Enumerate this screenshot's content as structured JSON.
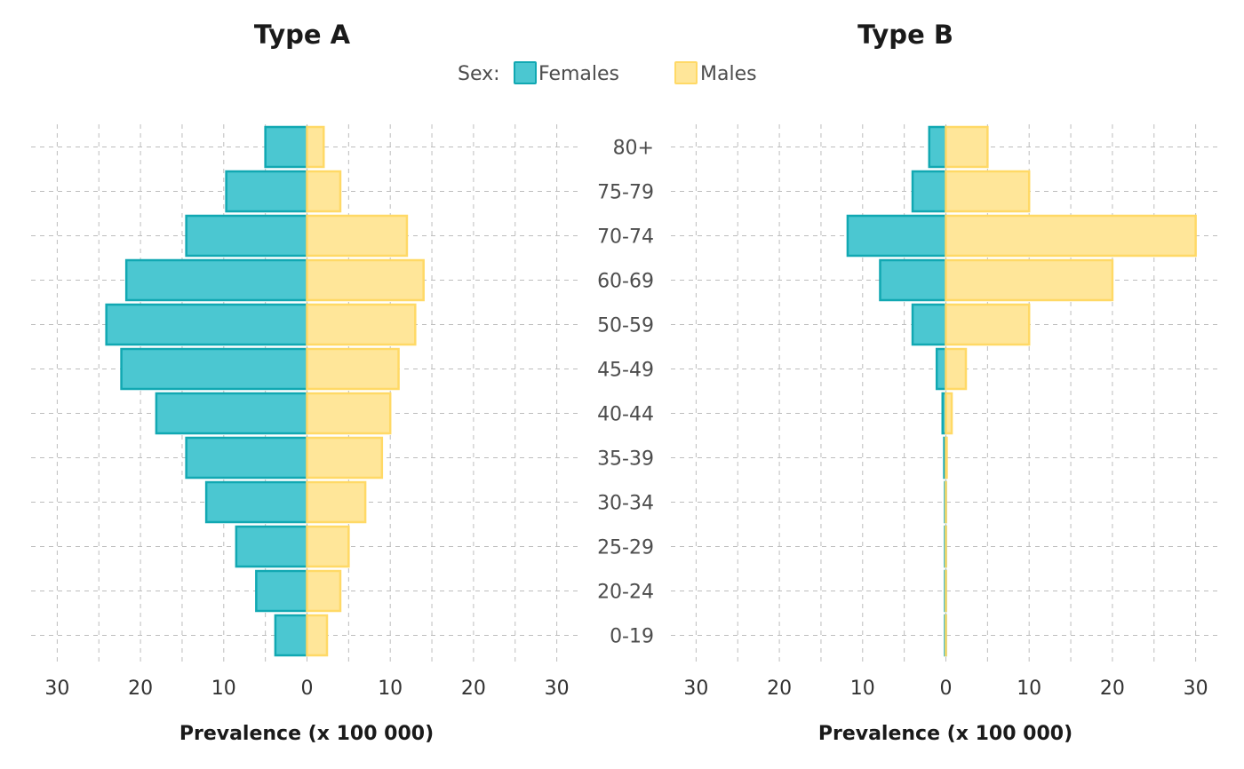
{
  "colors": {
    "females_fill": "#4BC7D1",
    "females_stroke": "#11A8B2",
    "males_fill": "#FFE699",
    "males_stroke": "#FFD966",
    "grid": "#bdbdbd"
  },
  "legend": {
    "title": "Sex:",
    "items": [
      {
        "key": "females",
        "label": "Females"
      },
      {
        "key": "males",
        "label": "Males"
      }
    ],
    "placement": "top-center"
  },
  "chart_data": [
    {
      "type": "bar",
      "orientation": "horizontal-population-pyramid",
      "title": "Type A",
      "xlabel": "Prevalence (x 100 000)",
      "xlim": [
        -30,
        30
      ],
      "xticks": [
        -30,
        -20,
        -10,
        0,
        10,
        20,
        30
      ],
      "xtick_labels": [
        "30",
        "20",
        "10",
        "0",
        "10",
        "20",
        "30"
      ],
      "grid": true,
      "categories": [
        "0-19",
        "20-24",
        "25-29",
        "30-34",
        "35-39",
        "40-44",
        "45-49",
        "50-59",
        "60-69",
        "70-74",
        "75-79",
        "80+"
      ],
      "series": [
        {
          "name": "Females",
          "key": "females",
          "values": [
            3.8,
            6.1,
            8.5,
            12.1,
            14.5,
            18.1,
            22.3,
            24.1,
            21.7,
            14.5,
            9.7,
            5.0
          ]
        },
        {
          "name": "Males",
          "key": "males",
          "values": [
            2.4,
            4.0,
            5.0,
            7.0,
            9.0,
            10.0,
            11.0,
            13.0,
            14.0,
            12.0,
            4.0,
            2.0
          ]
        }
      ]
    },
    {
      "type": "bar",
      "orientation": "horizontal-population-pyramid",
      "title": "Type B",
      "xlabel": "Prevalence (x 100 000)",
      "xlim": [
        -30,
        30
      ],
      "xticks": [
        -30,
        -20,
        -10,
        0,
        10,
        20,
        30
      ],
      "xtick_labels": [
        "30",
        "20",
        "10",
        "0",
        "10",
        "20",
        "30"
      ],
      "grid": true,
      "categories": [
        "0-19",
        "20-24",
        "25-29",
        "30-34",
        "35-39",
        "40-44",
        "45-49",
        "50-59",
        "60-69",
        "70-74",
        "75-79",
        "80+"
      ],
      "series": [
        {
          "name": "Females",
          "key": "females",
          "values": [
            0.1,
            0.1,
            0.1,
            0.1,
            0.2,
            0.4,
            1.1,
            4.0,
            7.9,
            11.8,
            4.0,
            2.0
          ]
        },
        {
          "name": "Males",
          "key": "males",
          "values": [
            0.0,
            0.0,
            0.0,
            0.0,
            0.1,
            0.7,
            2.4,
            10.0,
            20.0,
            30.0,
            10.0,
            5.0
          ]
        }
      ]
    }
  ]
}
